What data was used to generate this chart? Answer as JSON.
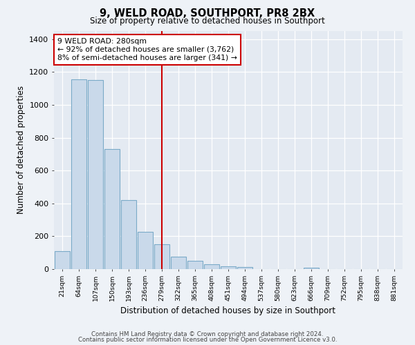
{
  "title": "9, WELD ROAD, SOUTHPORT, PR8 2BX",
  "subtitle": "Size of property relative to detached houses in Southport",
  "xlabel": "Distribution of detached houses by size in Southport",
  "ylabel": "Number of detached properties",
  "bin_labels": [
    "21sqm",
    "64sqm",
    "107sqm",
    "150sqm",
    "193sqm",
    "236sqm",
    "279sqm",
    "322sqm",
    "365sqm",
    "408sqm",
    "451sqm",
    "494sqm",
    "537sqm",
    "580sqm",
    "623sqm",
    "666sqm",
    "709sqm",
    "752sqm",
    "795sqm",
    "838sqm",
    "881sqm"
  ],
  "bar_values": [
    110,
    1155,
    1150,
    730,
    420,
    225,
    150,
    75,
    50,
    30,
    15,
    12,
    0,
    0,
    0,
    10,
    0,
    0,
    0,
    0,
    0
  ],
  "bar_color": "#c9d9ea",
  "bar_edgecolor": "#7aaac8",
  "vline_x_index": 6,
  "vline_color": "#cc0000",
  "annotation_line1": "9 WELD ROAD: 280sqm",
  "annotation_line2": "← 92% of detached houses are smaller (3,762)",
  "annotation_line3": "8% of semi-detached houses are larger (341) →",
  "annotation_box_edgecolor": "#cc0000",
  "ylim": [
    0,
    1450
  ],
  "yticks": [
    0,
    200,
    400,
    600,
    800,
    1000,
    1200,
    1400
  ],
  "footer1": "Contains HM Land Registry data © Crown copyright and database right 2024.",
  "footer2": "Contains public sector information licensed under the Open Government Licence v3.0.",
  "bg_color": "#eef2f7",
  "plot_bg_color": "#e4eaf2",
  "grid_color": "#ffffff"
}
